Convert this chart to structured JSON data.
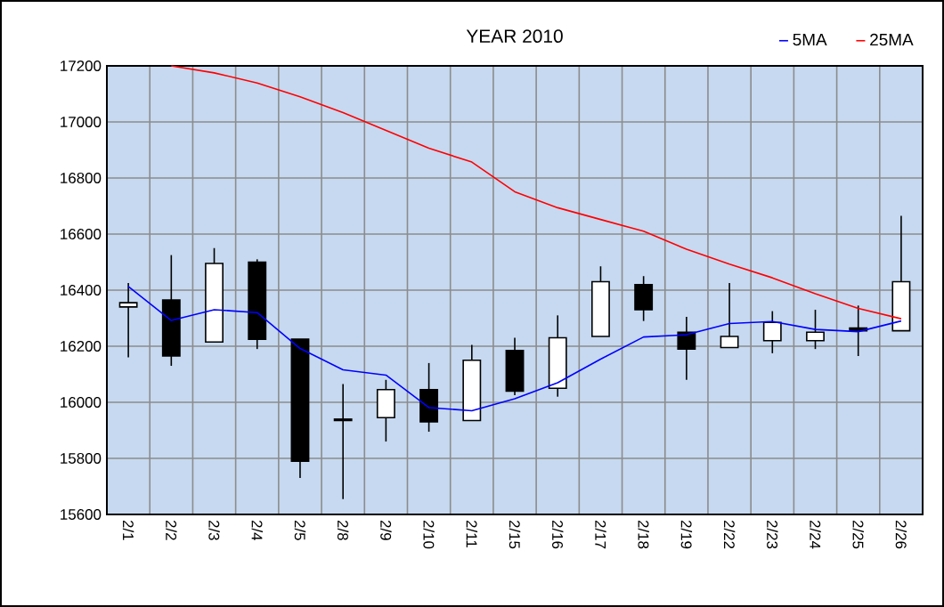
{
  "chart_data": {
    "type": "candlestick",
    "title": "YEAR 2010",
    "categories": [
      "2/1",
      "2/2",
      "2/3",
      "2/4",
      "2/5",
      "2/8",
      "2/9",
      "2/10",
      "2/11",
      "2/15",
      "2/16",
      "2/17",
      "2/18",
      "2/19",
      "2/22",
      "2/23",
      "2/24",
      "2/25",
      "2/26"
    ],
    "ohlc": [
      [
        16340,
        16425,
        16160,
        16355
      ],
      [
        16365,
        16525,
        16130,
        16165
      ],
      [
        16215,
        16550,
        16215,
        16495
      ],
      [
        16500,
        16510,
        16190,
        16225
      ],
      [
        16225,
        16225,
        15730,
        15790
      ],
      [
        15935,
        16065,
        15655,
        15940
      ],
      [
        15945,
        16080,
        15860,
        16045
      ],
      [
        16045,
        16140,
        15895,
        15930
      ],
      [
        15935,
        16205,
        15935,
        16150
      ],
      [
        16185,
        16230,
        16025,
        16040
      ],
      [
        16050,
        16310,
        16020,
        16230
      ],
      [
        16235,
        16485,
        16235,
        16430
      ],
      [
        16420,
        16450,
        16290,
        16330
      ],
      [
        16250,
        16305,
        16080,
        16190
      ],
      [
        16195,
        16425,
        16195,
        16235
      ],
      [
        16220,
        16325,
        16175,
        16285
      ],
      [
        16220,
        16330,
        16190,
        16250
      ],
      [
        16265,
        16345,
        16165,
        16255
      ],
      [
        16255,
        16665,
        16255,
        16430
      ]
    ],
    "series": [
      {
        "name": "5MA",
        "type": "line",
        "color": "#0000ff",
        "values": [
          16413,
          16292,
          16330,
          16320,
          16192,
          16116,
          16097,
          15981,
          15970,
          16013,
          16070,
          16154,
          16233,
          16241,
          16281,
          16288,
          16260,
          16252,
          16290
        ]
      },
      {
        "name": "25MA",
        "type": "line",
        "color": "#ff0000",
        "values": [
          null,
          17200,
          17175,
          17139,
          17090,
          17033,
          16970,
          16906,
          16857,
          16751,
          16694,
          16652,
          16610,
          16546,
          16493,
          16444,
          16387,
          16335,
          16298
        ]
      }
    ],
    "ylim": [
      15600,
      17200
    ],
    "yticks": [
      15600,
      15800,
      16000,
      16200,
      16400,
      16600,
      16800,
      17000,
      17200
    ],
    "grid": true,
    "legend": "top right"
  }
}
